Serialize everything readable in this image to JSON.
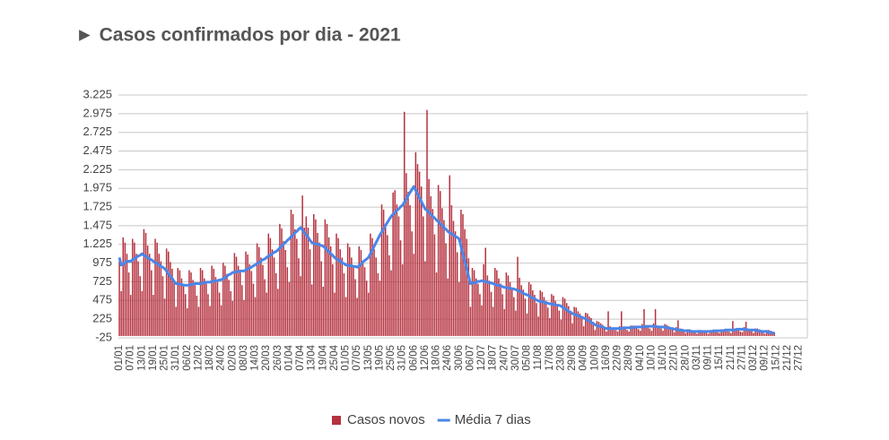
{
  "chart_data": {
    "type": "bar",
    "title": "► Casos confirmados por dia - 2021",
    "categories": [
      "01/01",
      null,
      null,
      null,
      null,
      null,
      "07/01",
      null,
      null,
      null,
      null,
      null,
      "13/01",
      null,
      null,
      null,
      null,
      null,
      "19/01",
      null,
      null,
      null,
      null,
      null,
      "25/01",
      null,
      null,
      null,
      null,
      null,
      "31/01",
      null,
      null,
      null,
      null,
      null,
      "06/02",
      null,
      null,
      null,
      null,
      null,
      "12/02",
      null,
      null,
      null,
      null,
      null,
      "18/02",
      null,
      null,
      null,
      null,
      null,
      "24/02",
      null,
      null,
      null,
      null,
      null,
      "02/03",
      null,
      null,
      null,
      null,
      null,
      "08/03",
      null,
      null,
      null,
      null,
      null,
      "14/03",
      null,
      null,
      null,
      null,
      null,
      "20/03",
      null,
      null,
      null,
      null,
      null,
      "26/03",
      null,
      null,
      null,
      null,
      null,
      "01/04",
      null,
      null,
      null,
      null,
      null,
      "07/04",
      null,
      null,
      null,
      null,
      null,
      "13/04",
      null,
      null,
      null,
      null,
      null,
      "19/04",
      null,
      null,
      null,
      null,
      null,
      "25/04",
      null,
      null,
      null,
      null,
      null,
      "01/05",
      null,
      null,
      null,
      null,
      null,
      "07/05",
      null,
      null,
      null,
      null,
      null,
      "13/05",
      null,
      null,
      null,
      null,
      null,
      "19/05",
      null,
      null,
      null,
      null,
      null,
      "25/05",
      null,
      null,
      null,
      null,
      null,
      "31/05",
      null,
      null,
      null,
      null,
      null,
      "06/06",
      null,
      null,
      null,
      null,
      null,
      "12/06",
      null,
      null,
      null,
      null,
      null,
      "18/06",
      null,
      null,
      null,
      null,
      null,
      "24/06",
      null,
      null,
      null,
      null,
      null,
      "30/06",
      null,
      null,
      null,
      null,
      null,
      "06/07",
      null,
      null,
      null,
      null,
      null,
      "12/07",
      null,
      null,
      null,
      null,
      null,
      "18/07",
      null,
      null,
      null,
      null,
      null,
      "24/07",
      null,
      null,
      null,
      null,
      null,
      "30/07",
      null,
      null,
      null,
      null,
      null,
      "05/08",
      null,
      null,
      null,
      null,
      null,
      "11/08",
      null,
      null,
      null,
      null,
      null,
      "17/08",
      null,
      null,
      null,
      null,
      null,
      "23/08",
      null,
      null,
      null,
      null,
      null,
      "29/08",
      null,
      null,
      null,
      null,
      null,
      "04/09",
      null,
      null,
      null,
      null,
      null,
      "10/09",
      null,
      null,
      null,
      null,
      null,
      "16/09",
      null,
      null,
      null,
      null,
      null,
      "22/09",
      null,
      null,
      null,
      null,
      null,
      "28/09",
      null,
      null,
      null,
      null,
      null,
      "04/10",
      null,
      null,
      null,
      null,
      null,
      "10/10",
      null,
      null,
      null,
      null,
      null,
      "16/10",
      null,
      null,
      null,
      null,
      null,
      "22/10",
      null,
      null,
      null,
      null,
      null,
      "28/10",
      null,
      null,
      null,
      null,
      null,
      "03/11",
      null,
      null,
      null,
      null,
      null,
      "09/11",
      null,
      null,
      null,
      null,
      null,
      "15/11",
      null,
      null,
      null,
      null,
      null,
      "21/11",
      null,
      null,
      null,
      null,
      null,
      "27/11",
      null,
      null,
      null,
      null,
      null,
      "03/12",
      null,
      null,
      null,
      null,
      null,
      "09/12",
      null,
      null,
      null,
      null,
      null,
      "15/12",
      null,
      null,
      null,
      null,
      null,
      "21/12",
      null,
      null,
      null,
      null,
      null,
      "27/12",
      null,
      null,
      null,
      null
    ],
    "series": [
      {
        "name": "Casos novos",
        "color": "#b5323f",
        "values": [
          1000,
          600,
          1320,
          1250,
          1100,
          850,
          550,
          1300,
          1250,
          1100,
          1000,
          800,
          600,
          1430,
          1380,
          1210,
          1100,
          880,
          550,
          1300,
          1250,
          1100,
          1000,
          800,
          500,
          1170,
          1130,
          990,
          900,
          720,
          390,
          910,
          880,
          770,
          700,
          560,
          370,
          880,
          850,
          750,
          680,
          540,
          390,
          910,
          880,
          770,
          700,
          560,
          400,
          940,
          900,
          790,
          720,
          580,
          410,
          980,
          940,
          830,
          750,
          600,
          470,
          1110,
          1060,
          940,
          850,
          680,
          480,
          1130,
          1090,
          960,
          870,
          700,
          520,
          1240,
          1190,
          1050,
          950,
          760,
          580,
          1370,
          1310,
          1160,
          1050,
          840,
          630,
          1500,
          1440,
          1270,
          1150,
          920,
          720,
          1690,
          1630,
          1430,
          1300,
          1040,
          800,
          1880,
          1450,
          1600,
          1450,
          1160,
          690,
          1630,
          1560,
          1380,
          1250,
          1000,
          660,
          1560,
          1500,
          1320,
          1200,
          960,
          580,
          1370,
          1310,
          1160,
          1050,
          840,
          520,
          1240,
          1190,
          1050,
          950,
          760,
          510,
          1200,
          1150,
          1010,
          920,
          740,
          580,
          1370,
          1310,
          1160,
          1050,
          840,
          740,
          1760,
          1690,
          1490,
          1350,
          1080,
          880,
          1920,
          1950,
          1760,
          1600,
          1280,
          960,
          3000,
          2180,
          1930,
          1750,
          1400,
          1100,
          2460,
          2300,
          2200,
          2000,
          1600,
          1000,
          3025,
          2100,
          1870,
          1700,
          1360,
          850,
          2020,
          1940,
          1710,
          1550,
          1240,
          770,
          2150,
          1750,
          1540,
          1400,
          1120,
          720,
          1690,
          1630,
          1430,
          1300,
          1040,
          390,
          910,
          880,
          770,
          700,
          560,
          410,
          960,
          1180,
          810,
          740,
          590,
          390,
          910,
          880,
          770,
          700,
          560,
          360,
          850,
          810,
          720,
          650,
          520,
          340,
          1060,
          780,
          680,
          620,
          500,
          300,
          720,
          690,
          610,
          550,
          440,
          260,
          610,
          590,
          520,
          470,
          380,
          240,
          560,
          540,
          470,
          430,
          340,
          220,
          520,
          500,
          440,
          400,
          320,
          170,
          390,
          380,
          330,
          300,
          240,
          130,
          310,
          300,
          260,
          240,
          190,
          80,
          200,
          190,
          170,
          150,
          120,
          60,
          330,
          130,
          110,
          100,
          80,
          60,
          130,
          330,
          110,
          100,
          80,
          60,
          140,
          140,
          120,
          110,
          90,
          70,
          160,
          360,
          130,
          120,
          100,
          70,
          170,
          360,
          140,
          130,
          100,
          70,
          160,
          150,
          130,
          120,
          100,
          50,
          120,
          210,
          100,
          90,
          70,
          40,
          90,
          90,
          80,
          70,
          60,
          30,
          80,
          80,
          70,
          60,
          50,
          30,
          80,
          80,
          70,
          60,
          50,
          40,
          90,
          90,
          80,
          70,
          60,
          40,
          200,
          100,
          90,
          80,
          60,
          50,
          120,
          190,
          100,
          90,
          70,
          40,
          100,
          100,
          90,
          80,
          60,
          30,
          80,
          80,
          70,
          60,
          50,
          null,
          null,
          null,
          null,
          null,
          null,
          null,
          null,
          null,
          null,
          null,
          null,
          null,
          null,
          null,
          null,
          null
        ]
      },
      {
        "name": "Média 7 dias",
        "color": "#4a86e8",
        "values": [
          1050,
          950,
          960,
          980,
          1000,
          1000,
          1000,
          1020,
          1030,
          1050,
          1070,
          1080,
          1100,
          1080,
          1070,
          1050,
          1030,
          1020,
          1000,
          980,
          970,
          950,
          930,
          920,
          900,
          870,
          830,
          800,
          770,
          730,
          700,
          700,
          690,
          690,
          680,
          680,
          680,
          680,
          690,
          690,
          700,
          700,
          700,
          700,
          710,
          710,
          720,
          720,
          720,
          730,
          730,
          740,
          740,
          750,
          750,
          770,
          780,
          800,
          820,
          830,
          850,
          850,
          860,
          860,
          870,
          870,
          870,
          880,
          900,
          910,
          920,
          940,
          950,
          970,
          980,
          1000,
          1020,
          1030,
          1050,
          1070,
          1080,
          1100,
          1120,
          1130,
          1150,
          1180,
          1200,
          1230,
          1250,
          1280,
          1300,
          1330,
          1350,
          1380,
          1400,
          1430,
          1450,
          1420,
          1380,
          1350,
          1320,
          1280,
          1250,
          1240,
          1230,
          1230,
          1220,
          1210,
          1200,
          1180,
          1150,
          1130,
          1100,
          1080,
          1050,
          1030,
          1020,
          1000,
          980,
          970,
          950,
          950,
          940,
          940,
          930,
          930,
          920,
          940,
          960,
          990,
          1010,
          1030,
          1050,
          1100,
          1150,
          1200,
          1250,
          1300,
          1350,
          1390,
          1430,
          1480,
          1520,
          1560,
          1600,
          1630,
          1650,
          1680,
          1700,
          1730,
          1750,
          1790,
          1830,
          1880,
          1920,
          1960,
          2000,
          1950,
          1900,
          1850,
          1800,
          1750,
          1700,
          1680,
          1650,
          1630,
          1600,
          1580,
          1550,
          1530,
          1500,
          1480,
          1450,
          1430,
          1400,
          1380,
          1370,
          1350,
          1330,
          1320,
          1300,
          1200,
          1100,
          1000,
          900,
          800,
          700,
          710,
          710,
          720,
          730,
          730,
          740,
          730,
          730,
          720,
          710,
          710,
          700,
          690,
          680,
          680,
          670,
          660,
          650,
          650,
          640,
          640,
          630,
          630,
          620,
          610,
          600,
          590,
          570,
          560,
          550,
          540,
          520,
          510,
          500,
          480,
          470,
          460,
          460,
          450,
          440,
          440,
          430,
          430,
          420,
          420,
          410,
          410,
          400,
          380,
          370,
          350,
          330,
          320,
          300,
          290,
          280,
          270,
          260,
          250,
          240,
          230,
          210,
          200,
          180,
          170,
          150,
          140,
          130,
          130,
          120,
          110,
          100,
          100,
          100,
          100,
          100,
          100,
          100,
          100,
          100,
          110,
          110,
          110,
          110,
          110,
          110,
          120,
          120,
          120,
          120,
          120,
          120,
          130,
          130,
          130,
          130,
          130,
          130,
          120,
          120,
          120,
          120,
          120,
          110,
          110,
          100,
          100,
          90,
          90,
          80,
          80,
          80,
          70,
          70,
          70,
          70,
          60,
          60,
          60,
          60,
          60,
          60,
          60,
          60,
          60,
          60,
          60,
          60,
          70,
          70,
          70,
          70,
          70,
          70,
          80,
          80,
          80,
          80,
          80,
          80,
          90,
          90,
          90,
          90,
          90,
          90,
          80,
          80,
          80,
          80,
          80,
          70,
          70,
          60,
          60,
          60,
          60,
          50,
          50,
          40,
          40,
          null,
          null,
          null,
          null,
          null,
          null,
          null,
          null,
          null,
          null,
          null,
          null,
          null,
          null,
          null,
          null,
          null
        ]
      }
    ],
    "ylim": [
      -25,
      3225
    ],
    "yticks": [
      -25,
      225,
      475,
      725,
      975,
      {
        "value": 1225,
        "label": "1.225"
      },
      {
        "value": 1475,
        "label": "1.475"
      },
      {
        "value": 1725,
        "label": "1.725"
      },
      {
        "value": 1975,
        "label": "1.975"
      },
      {
        "value": 2225,
        "label": "2.225"
      },
      {
        "value": 2475,
        "label": "2.475"
      },
      {
        "value": 2725,
        "label": "2.725"
      },
      {
        "value": 2975,
        "label": "2.975"
      },
      {
        "value": 3225,
        "label": "3.225"
      }
    ],
    "grid": true
  }
}
